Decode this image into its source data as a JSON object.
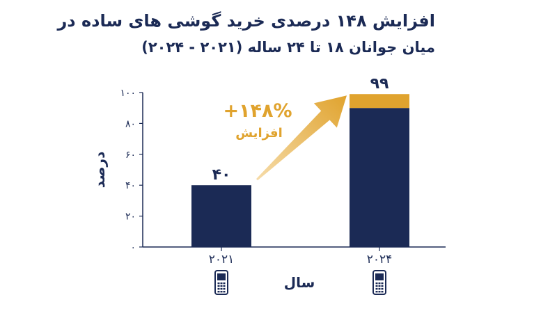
{
  "chart_data": {
    "type": "bar",
    "title": "افزایش ۱۴۸ درصدی خرید گوشی های ساده در",
    "subtitle": "میان جوانان ۱۸ تا ۲۴ ساله (۲۰۲۱ - ۲۰۲۴)",
    "xlabel": "سال",
    "ylabel": "درصد",
    "categories": [
      "۲۰۲۱",
      "۲۰۲۴"
    ],
    "values": [
      40,
      99
    ],
    "data_labels": [
      "۴۰",
      "۹۹"
    ],
    "ylim": [
      0,
      100
    ],
    "yticks": [
      0,
      20,
      40,
      60,
      80,
      100
    ],
    "ytick_labels": [
      "۰",
      "۲۰",
      "۴۰",
      "۶۰",
      "۸۰",
      "۱۰۰"
    ],
    "grid": false,
    "annotation": {
      "value_text": "+۱۴۸%",
      "text": "افزایش",
      "from_category": "۲۰۲۱",
      "to_category": "۲۰۲۴"
    },
    "highlight_from_value": 90,
    "category_icon": "phone-icon",
    "colors": {
      "bar": "#1b2a55",
      "highlight": "#e0a32e",
      "annotation": "#e0a32e",
      "axis": "#1b2a55"
    }
  }
}
